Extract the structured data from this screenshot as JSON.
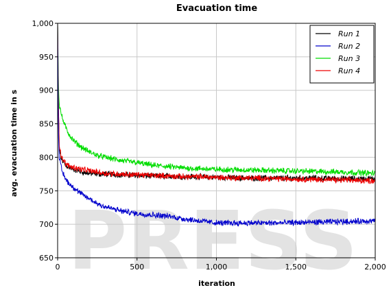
{
  "chart_data": {
    "type": "line",
    "title": "Evacuation time",
    "xlabel": "iteration",
    "ylabel": "avg. evacuation time in s",
    "xlim": [
      0,
      2000
    ],
    "ylim": [
      650,
      1000
    ],
    "xticks": [
      0,
      500,
      1000,
      1500,
      2000
    ],
    "xtick_labels": [
      "0",
      "500",
      "1,000",
      "1,500",
      "2,000"
    ],
    "yticks": [
      650,
      700,
      750,
      800,
      850,
      900,
      950,
      1000
    ],
    "ytick_labels": [
      "650",
      "700",
      "750",
      "800",
      "850",
      "900",
      "950",
      "1,000"
    ],
    "grid": true,
    "legend_position": "top-right",
    "x": [
      0,
      5,
      10,
      20,
      30,
      50,
      75,
      100,
      150,
      200,
      250,
      300,
      400,
      500,
      600,
      700,
      800,
      900,
      1000,
      1200,
      1400,
      1600,
      1800,
      2000
    ],
    "series": [
      {
        "name": "Run 1",
        "color": "#000000",
        "noise": 3.5,
        "values": [
          1000,
          880,
          815,
          800,
          795,
          788,
          785,
          782,
          778,
          776,
          775,
          775,
          774,
          773,
          772,
          772,
          771,
          771,
          770,
          769,
          769,
          769,
          768,
          768
        ]
      },
      {
        "name": "Run 2",
        "color": "#0000cc",
        "noise": 3.5,
        "values": [
          1000,
          840,
          798,
          788,
          778,
          768,
          760,
          755,
          745,
          738,
          731,
          726,
          720,
          716,
          714,
          712,
          708,
          705,
          702,
          702,
          702,
          703,
          704,
          705
        ]
      },
      {
        "name": "Run 3",
        "color": "#00dd00",
        "noise": 3.5,
        "values": [
          1000,
          910,
          880,
          868,
          858,
          845,
          833,
          825,
          815,
          808,
          803,
          800,
          795,
          792,
          788,
          786,
          784,
          783,
          782,
          781,
          780,
          779,
          778,
          776
        ]
      },
      {
        "name": "Run 4",
        "color": "#ee0000",
        "noise": 3.5,
        "values": [
          1000,
          880,
          820,
          805,
          798,
          790,
          787,
          785,
          782,
          780,
          778,
          776,
          775,
          774,
          773,
          772,
          771,
          771,
          770,
          769,
          768,
          767,
          766,
          765
        ]
      }
    ],
    "watermark": "PRESS"
  }
}
